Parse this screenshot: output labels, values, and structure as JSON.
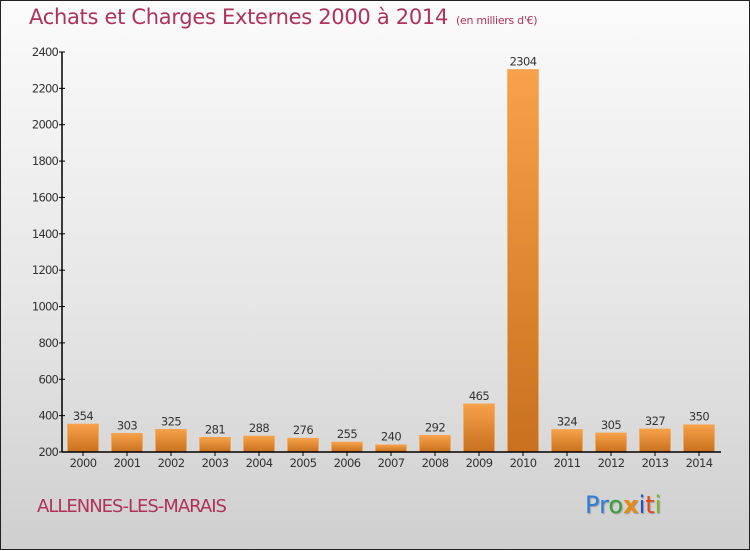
{
  "header": {
    "title": "Achats et Charges Externes 2000 à 2014",
    "subtitle": "(en milliers d'€)"
  },
  "footer": {
    "city": "ALLENNES-LES-MARAIS",
    "logo": [
      "P",
      "r",
      "o",
      "x",
      "i",
      "t",
      "i"
    ],
    "logo_colors": [
      "#2e7fd6",
      "#2e7fd6",
      "#3aa03a",
      "#e68a1a",
      "#2255cc",
      "#e04a1a",
      "#7ab82a"
    ]
  },
  "colors": {
    "title": "#b0325a",
    "bar_top": "#f7a24a",
    "bar_bottom": "#c8701e",
    "axis": "#000000",
    "label": "#333333"
  },
  "chart_data": {
    "type": "bar",
    "title": "Achats et Charges Externes 2000 à 2014",
    "subtitle": "(en milliers d'€)",
    "xlabel": "",
    "ylabel": "",
    "categories": [
      "2000",
      "2001",
      "2002",
      "2003",
      "2004",
      "2005",
      "2006",
      "2007",
      "2008",
      "2009",
      "2010",
      "2011",
      "2012",
      "2013",
      "2014"
    ],
    "values": [
      354,
      303,
      325,
      281,
      288,
      276,
      255,
      240,
      292,
      465,
      2304,
      324,
      305,
      327,
      350
    ],
    "ylim": [
      200,
      2400
    ],
    "yticks": [
      200,
      400,
      600,
      800,
      1000,
      1200,
      1400,
      1600,
      1800,
      2000,
      2200,
      2400
    ],
    "grid": false,
    "legend": "none",
    "data_labels": true
  }
}
